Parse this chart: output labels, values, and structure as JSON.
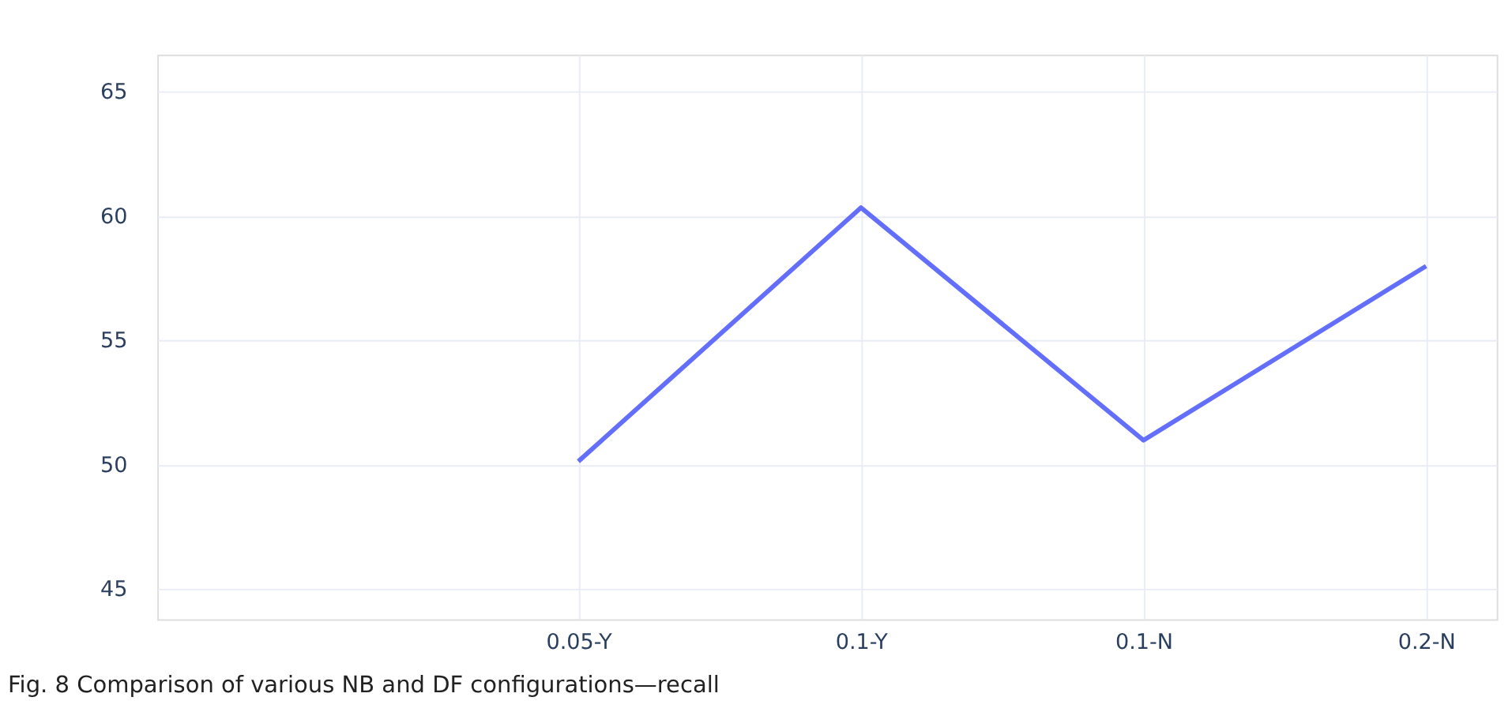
{
  "chart_data": {
    "type": "line",
    "title": "Fig. 8  Comparison of various NB and DF configurations—recall",
    "categories": [
      "0.05-Y",
      "0.1-Y",
      "0.1-N",
      "0.2-N"
    ],
    "series": [
      {
        "color": "#636efa",
        "values": [
          50.15,
          60.35,
          51.0,
          58.0
        ]
      }
    ],
    "ylim": [
      43.8,
      66.5
    ],
    "yticks": [
      45,
      50,
      55,
      60,
      65
    ],
    "grid": true,
    "legend": false,
    "marker": "none",
    "line_style": "solid"
  }
}
